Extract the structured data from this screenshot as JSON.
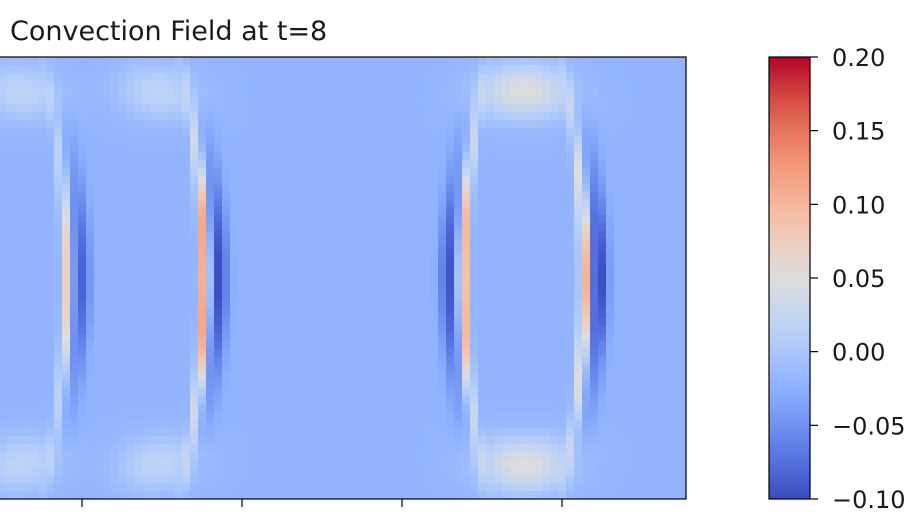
{
  "chart_data": {
    "type": "heatmap",
    "title": "Convection Field at t=8",
    "xlabel": "",
    "ylabel": "",
    "colormap": "coolwarm",
    "colorbar": {
      "vmin": -0.1,
      "vmax": 0.2,
      "ticks": [
        -0.1,
        -0.05,
        0.0,
        0.05,
        0.1,
        0.15,
        0.2
      ],
      "tick_labels": [
        "−0.10",
        "−0.05",
        "0.00",
        "0.05",
        "0.10",
        "0.15",
        "0.20"
      ]
    },
    "x_tick_count": 4,
    "background_value": -0.02,
    "features": [
      {
        "kind": "front",
        "center": [
          0.85,
          0.5
        ],
        "dir": 1,
        "peak": 0.095,
        "trough": -0.065
      },
      {
        "kind": "front",
        "center": [
          2.55,
          0.5
        ],
        "dir": 1,
        "peak": 0.165,
        "trough": -0.08
      },
      {
        "kind": "front",
        "center": [
          5.75,
          0.5
        ],
        "dir": -1,
        "peak": 0.15,
        "trough": -0.075
      },
      {
        "kind": "front",
        "center": [
          7.25,
          0.5
        ],
        "dir": 1,
        "peak": 0.14,
        "trough": -0.085
      }
    ]
  }
}
